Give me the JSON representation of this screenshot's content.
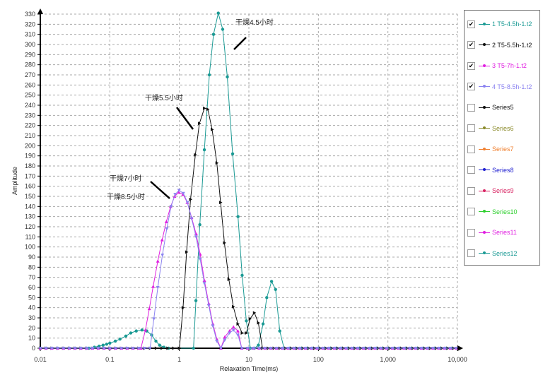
{
  "chart_data": {
    "type": "line",
    "title": "",
    "xlabel": "Relaxation Time(ms)",
    "ylabel": "Amplitude",
    "xscale": "log",
    "xlim": [
      0.01,
      10000
    ],
    "ylim": [
      0,
      330
    ],
    "x_ticks": [
      "0.01",
      "0.1",
      "1",
      "10",
      "100",
      "1,000",
      "10,000"
    ],
    "y_tick_step": 10,
    "grid": true,
    "legend_position": "right",
    "series": [
      {
        "name": "1 T5-4.5h-1.t2",
        "color": "#1a9a94",
        "marker": "circle",
        "checked": true,
        "points": [
          [
            0.05,
            0
          ],
          [
            0.06,
            1
          ],
          [
            0.07,
            2
          ],
          [
            0.08,
            3
          ],
          [
            0.09,
            4
          ],
          [
            0.1,
            5
          ],
          [
            0.12,
            7
          ],
          [
            0.14,
            9
          ],
          [
            0.17,
            12
          ],
          [
            0.2,
            15
          ],
          [
            0.24,
            17
          ],
          [
            0.29,
            18
          ],
          [
            0.34,
            17
          ],
          [
            0.4,
            13
          ],
          [
            0.46,
            7
          ],
          [
            0.52,
            3
          ],
          [
            0.6,
            1
          ],
          [
            0.7,
            0
          ],
          [
            1.6,
            0
          ],
          [
            1.73,
            47
          ],
          [
            1.97,
            122
          ],
          [
            2.29,
            196
          ],
          [
            2.7,
            270
          ],
          [
            3.1,
            310
          ],
          [
            3.63,
            331
          ],
          [
            4.2,
            315
          ],
          [
            4.9,
            268
          ],
          [
            5.84,
            192
          ],
          [
            6.98,
            130
          ],
          [
            8.0,
            72
          ],
          [
            9.2,
            27
          ],
          [
            10.5,
            0
          ],
          [
            12,
            0
          ],
          [
            13.7,
            3
          ],
          [
            16,
            24
          ],
          [
            18.1,
            50
          ],
          [
            21.2,
            66
          ],
          [
            24.2,
            58
          ],
          [
            27.8,
            17
          ],
          [
            32,
            0
          ]
        ]
      },
      {
        "name": "2 T5-5.5h-1.t2",
        "color": "#111111",
        "marker": "triangle-right",
        "checked": true,
        "points": [
          [
            1.0,
            0
          ],
          [
            1.13,
            40
          ],
          [
            1.27,
            95
          ],
          [
            1.45,
            147
          ],
          [
            1.7,
            191
          ],
          [
            1.94,
            222
          ],
          [
            2.29,
            237
          ],
          [
            2.57,
            236
          ],
          [
            2.96,
            216
          ],
          [
            3.46,
            183
          ],
          [
            3.92,
            144
          ],
          [
            4.45,
            104
          ],
          [
            5.15,
            68
          ],
          [
            5.97,
            41
          ],
          [
            6.95,
            24
          ],
          [
            8.0,
            15
          ],
          [
            9.2,
            15
          ],
          [
            10.4,
            29
          ],
          [
            12,
            35
          ],
          [
            13.7,
            25
          ],
          [
            15.7,
            0
          ]
        ]
      },
      {
        "name": "3 T5-7h-1.t2",
        "color": "#e020e0",
        "marker": "triangle-up",
        "checked": true,
        "points": [
          [
            0.28,
            0
          ],
          [
            0.325,
            18
          ],
          [
            0.37,
            39
          ],
          [
            0.42,
            61
          ],
          [
            0.49,
            86
          ],
          [
            0.565,
            107
          ],
          [
            0.65,
            125
          ],
          [
            0.75,
            140
          ],
          [
            0.855,
            150
          ],
          [
            0.98,
            154
          ],
          [
            1.13,
            152
          ],
          [
            1.3,
            144
          ],
          [
            1.5,
            129
          ],
          [
            1.74,
            113
          ],
          [
            1.99,
            93
          ],
          [
            2.29,
            67
          ],
          [
            2.65,
            44
          ],
          [
            3.03,
            24
          ],
          [
            3.46,
            9
          ],
          [
            3.96,
            0
          ],
          [
            4.5,
            11
          ],
          [
            5.27,
            17
          ],
          [
            6.0,
            21
          ],
          [
            6.95,
            17
          ],
          [
            7.9,
            0
          ]
        ]
      },
      {
        "name": "4 T5-8.5h-1.t2",
        "color": "#8c84f0",
        "marker": "triangle-down",
        "checked": true,
        "points": [
          [
            0.38,
            0
          ],
          [
            0.43,
            29
          ],
          [
            0.49,
            60
          ],
          [
            0.57,
            92
          ],
          [
            0.66,
            118
          ],
          [
            0.76,
            140
          ],
          [
            0.87,
            152
          ],
          [
            0.99,
            156
          ],
          [
            1.14,
            153
          ],
          [
            1.31,
            144
          ],
          [
            1.5,
            128
          ],
          [
            1.74,
            110
          ],
          [
            1.99,
            88
          ],
          [
            2.29,
            64
          ],
          [
            2.65,
            42
          ],
          [
            3.03,
            22
          ],
          [
            3.46,
            7
          ],
          [
            3.96,
            0
          ],
          [
            4.5,
            8
          ],
          [
            5.27,
            15
          ],
          [
            6.0,
            18
          ],
          [
            6.95,
            13
          ],
          [
            7.9,
            0
          ]
        ]
      }
    ],
    "annotations": [
      "干燥4.5小时",
      "干燥5.5小时",
      "干燥7小时",
      "干燥8.5小时"
    ]
  },
  "legend": [
    {
      "label": "1 T5-4.5h-1.t2",
      "color": "#1a9a94",
      "checked": true
    },
    {
      "label": "2 T5-5.5h-1.t2",
      "color": "#111111",
      "checked": true
    },
    {
      "label": "3 T5-7h-1.t2",
      "color": "#e020e0",
      "checked": true
    },
    {
      "label": "4 T5-8.5h-1.t2",
      "color": "#8c84f0",
      "checked": true
    },
    {
      "label": "Series5",
      "color": "#111111",
      "checked": false
    },
    {
      "label": "Series6",
      "color": "#8a8a2a",
      "checked": false
    },
    {
      "label": "Series7",
      "color": "#f08030",
      "checked": false
    },
    {
      "label": "Series8",
      "color": "#2020d0",
      "checked": false
    },
    {
      "label": "Series9",
      "color": "#d82060",
      "checked": false
    },
    {
      "label": "Series10",
      "color": "#30d030",
      "checked": false
    },
    {
      "label": "Series11",
      "color": "#e020e0",
      "checked": false
    },
    {
      "label": "Series12",
      "color": "#1a9a94",
      "checked": false
    }
  ]
}
